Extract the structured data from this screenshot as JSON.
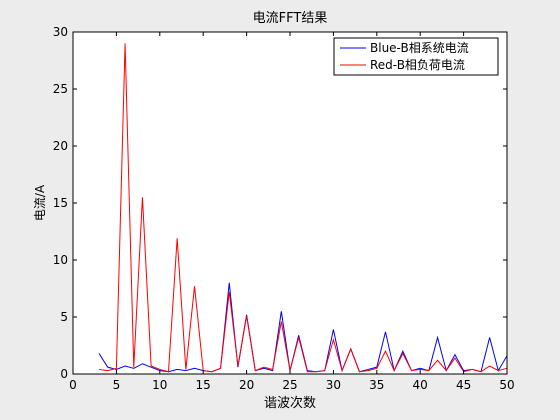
{
  "chart_data": {
    "type": "line",
    "title": "电流FFT结果",
    "xlabel": "谐波次数",
    "ylabel": "电流/A",
    "xlim": [
      0,
      50
    ],
    "ylim": [
      0,
      30
    ],
    "xticks": [
      0,
      5,
      10,
      15,
      20,
      25,
      30,
      35,
      40,
      45,
      50
    ],
    "yticks": [
      0,
      5,
      10,
      15,
      20,
      25,
      30
    ],
    "grid": false,
    "legend_position": "top-right",
    "x": [
      3,
      4,
      5,
      6,
      7,
      8,
      9,
      10,
      11,
      12,
      13,
      14,
      15,
      16,
      17,
      18,
      19,
      20,
      21,
      22,
      23,
      24,
      25,
      26,
      27,
      28,
      29,
      30,
      31,
      32,
      33,
      34,
      35,
      36,
      37,
      38,
      39,
      40,
      41,
      42,
      43,
      44,
      45,
      46,
      47,
      48,
      49,
      50
    ],
    "series": [
      {
        "name": "Blue-B相系统电流",
        "color": "#0000ff",
        "values": [
          1.8,
          0.6,
          0.4,
          0.7,
          0.5,
          0.9,
          0.6,
          0.3,
          0.2,
          0.4,
          0.3,
          0.5,
          0.3,
          0.2,
          0.5,
          8.0,
          0.6,
          5.2,
          0.3,
          0.5,
          0.3,
          5.5,
          0.3,
          3.4,
          0.3,
          0.2,
          0.3,
          3.9,
          0.3,
          2.2,
          0.2,
          0.4,
          0.6,
          3.7,
          0.3,
          2.0,
          0.3,
          0.5,
          0.3,
          3.2,
          0.3,
          1.7,
          0.3,
          0.4,
          0.2,
          3.2,
          0.3,
          1.6
        ]
      },
      {
        "name": "Red-B相负荷电流",
        "color": "#ff0000",
        "values": [
          0.4,
          0.3,
          0.5,
          29.0,
          0.6,
          15.5,
          0.7,
          0.4,
          0.2,
          11.9,
          0.4,
          7.7,
          0.3,
          0.2,
          0.5,
          7.2,
          0.7,
          5.1,
          0.3,
          0.6,
          0.4,
          4.6,
          0.3,
          3.2,
          0.2,
          0.2,
          0.3,
          3.0,
          0.3,
          2.2,
          0.2,
          0.3,
          0.5,
          2.0,
          0.3,
          1.8,
          0.3,
          0.4,
          0.3,
          1.2,
          0.3,
          1.4,
          0.2,
          0.4,
          0.2,
          0.7,
          0.3,
          0.5
        ]
      }
    ]
  }
}
